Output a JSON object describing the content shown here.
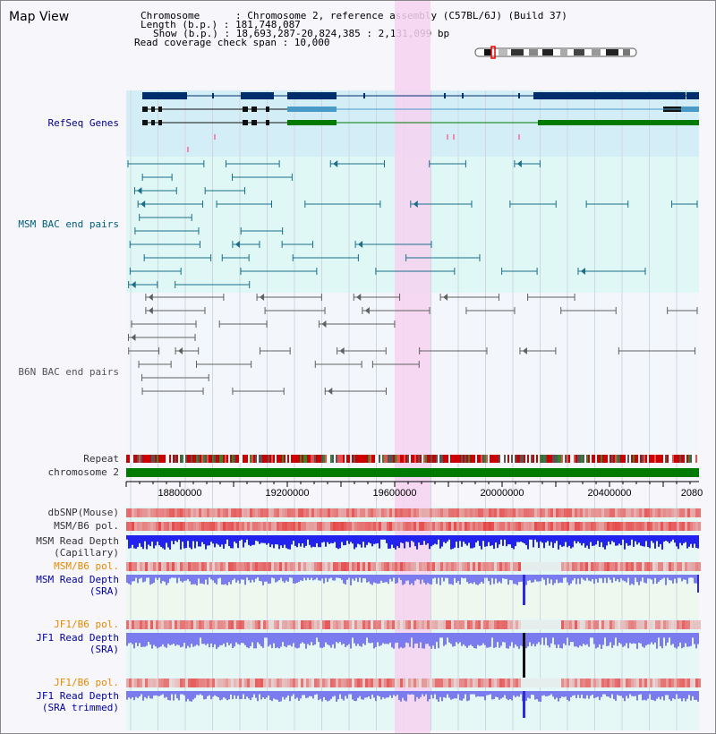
{
  "title": "Map View",
  "header": {
    "chromosome": "Chromosome      : Chromosome 2, reference assembly (C57BL/6J) (Build 37)",
    "length": "Length (b.p.) : 181,748,087",
    "show": "Show (b.p.) : 18,693,287-20,824,385 : 2,131,099 bp",
    "coverage": "Read coverage check span : 10,000"
  },
  "tracks": {
    "refseq": "RefSeq Genes",
    "msm_bac": "MSM BAC end pairs",
    "b6n_bac": "B6N BAC end pairs",
    "repeat": "Repeat",
    "chromosome": "chromosome 2",
    "dbsnp": "dbSNP(Mouse)",
    "msm_pol": "MSM/B6 pol.",
    "msm_depth_cap_1": "MSM Read Depth",
    "msm_depth_cap_2": "(Capillary)",
    "msm_pol_sra": "MSM/B6 pol.",
    "msm_depth_sra_1": "MSM Read Depth",
    "msm_depth_sra_2": "(SRA)",
    "jf1_pol": "JF1/B6 pol.",
    "jf1_depth_1": "JF1 Read Depth",
    "jf1_depth_2": "(SRA)",
    "jf1_pol_trim": "JF1/B6 pol.",
    "jf1_trim_1": "JF1 Read Depth",
    "jf1_trim_2": "(SRA trimmed)"
  },
  "axis": {
    "ticks": [
      "18800000",
      "19200000",
      "19600000",
      "20000000",
      "20400000",
      "2080"
    ]
  },
  "colors": {
    "refseq_bg": "#d4eef8",
    "bac_bg": "#dff8f5",
    "highlight": "#f6d2f0",
    "gene_navy": "#002d6b",
    "gene_blue": "#4a9ac8",
    "gene_green": "#007a00",
    "bac_teal": "#1a6e88",
    "bac_gray": "#606060",
    "chrom_green": "#007a00",
    "depth_blue": "#2222ee",
    "depth_light": "#7b7bf0"
  }
}
